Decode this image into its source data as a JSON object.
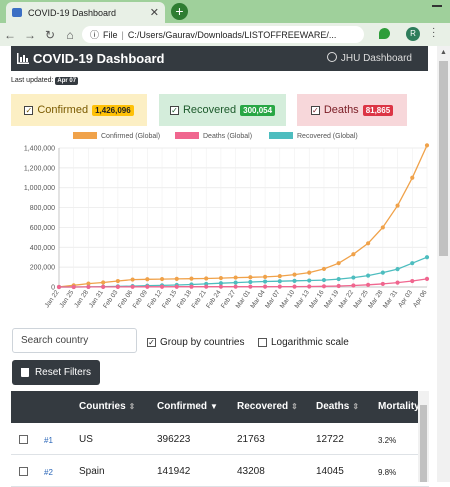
{
  "browser": {
    "tab_title": "COVID-19 Dashboard",
    "file_label": "File",
    "url": "C:/Users/Gaurav/Downloads/LISTOFFREEWARE/...",
    "avatar_letter": "R"
  },
  "header": {
    "title": "COVID-19 Dashboard",
    "link": "JHU Dashboard"
  },
  "last_updated": {
    "label": "Last updated:",
    "date": "Apr 07"
  },
  "cards": [
    {
      "label": "Confirmed",
      "value": "1,426,096"
    },
    {
      "label": "Recovered",
      "value": "300,054"
    },
    {
      "label": "Deaths",
      "value": "81,865"
    }
  ],
  "chart_data": {
    "type": "line",
    "legend": [
      "Confirmed (Global)",
      "Deaths (Global)",
      "Recovered (Global)"
    ],
    "legend_position": "top",
    "y_ticks": [
      "1,400,000",
      "1,200,000",
      "1,000,000",
      "800,000",
      "600,000",
      "400,000",
      "200,000",
      "0"
    ],
    "ylim": [
      0,
      1400000
    ],
    "x_labels": [
      "Jan 22",
      "Jan 25",
      "Jan 28",
      "Jan 31",
      "Feb 03",
      "Feb 06",
      "Feb 09",
      "Feb 12",
      "Feb 15",
      "Feb 18",
      "Feb 21",
      "Feb 24",
      "Feb 27",
      "Mar 01",
      "Mar 04",
      "Mar 07",
      "Mar 10",
      "Mar 13",
      "Mar 16",
      "Mar 19",
      "Mar 22",
      "Mar 25",
      "Mar 28",
      "Mar 31",
      "Apr 03",
      "Apr 06"
    ],
    "grid": true,
    "colors": {
      "confirmed": "#f0a24a",
      "deaths": "#f0668f",
      "recovered": "#4dbdbf"
    },
    "series": [
      {
        "name": "Confirmed (Global)",
        "values": [
          555,
          17000,
          34000,
          45000,
          60000,
          75000,
          78000,
          80000,
          82000,
          84000,
          86000,
          90000,
          95000,
          98000,
          102000,
          110000,
          125000,
          145000,
          182000,
          240000,
          330000,
          440000,
          600000,
          820000,
          1100000,
          1426096
        ]
      },
      {
        "name": "Deaths (Global)",
        "values": [
          17,
          300,
          700,
          1000,
          1500,
          2000,
          2300,
          2500,
          2700,
          2900,
          3000,
          3100,
          3200,
          3300,
          3400,
          3600,
          4000,
          5000,
          7000,
          10000,
          15000,
          22000,
          31000,
          44000,
          60000,
          81865
        ]
      },
      {
        "name": "Recovered (Global)",
        "values": [
          28,
          500,
          1500,
          3000,
          6000,
          9000,
          13000,
          16000,
          20000,
          25000,
          31000,
          38000,
          44000,
          50000,
          55000,
          58000,
          62000,
          65000,
          70000,
          80000,
          95000,
          115000,
          145000,
          180000,
          240000,
          300054
        ]
      }
    ]
  },
  "controls": {
    "search_placeholder": "Search country",
    "group_label": "Group by countries",
    "log_label": "Logarithmic scale",
    "reset_label": "Reset Filters"
  },
  "table": {
    "headers": [
      "Countries",
      "Confirmed",
      "Recovered",
      "Deaths",
      "Mortality"
    ],
    "rows": [
      {
        "idx": "#1",
        "country": "US",
        "confirmed": "396223",
        "recovered": "21763",
        "deaths": "12722",
        "mortality": "3.2%"
      },
      {
        "idx": "#2",
        "country": "Spain",
        "confirmed": "141942",
        "recovered": "43208",
        "deaths": "14045",
        "mortality": "9.8%"
      }
    ]
  }
}
